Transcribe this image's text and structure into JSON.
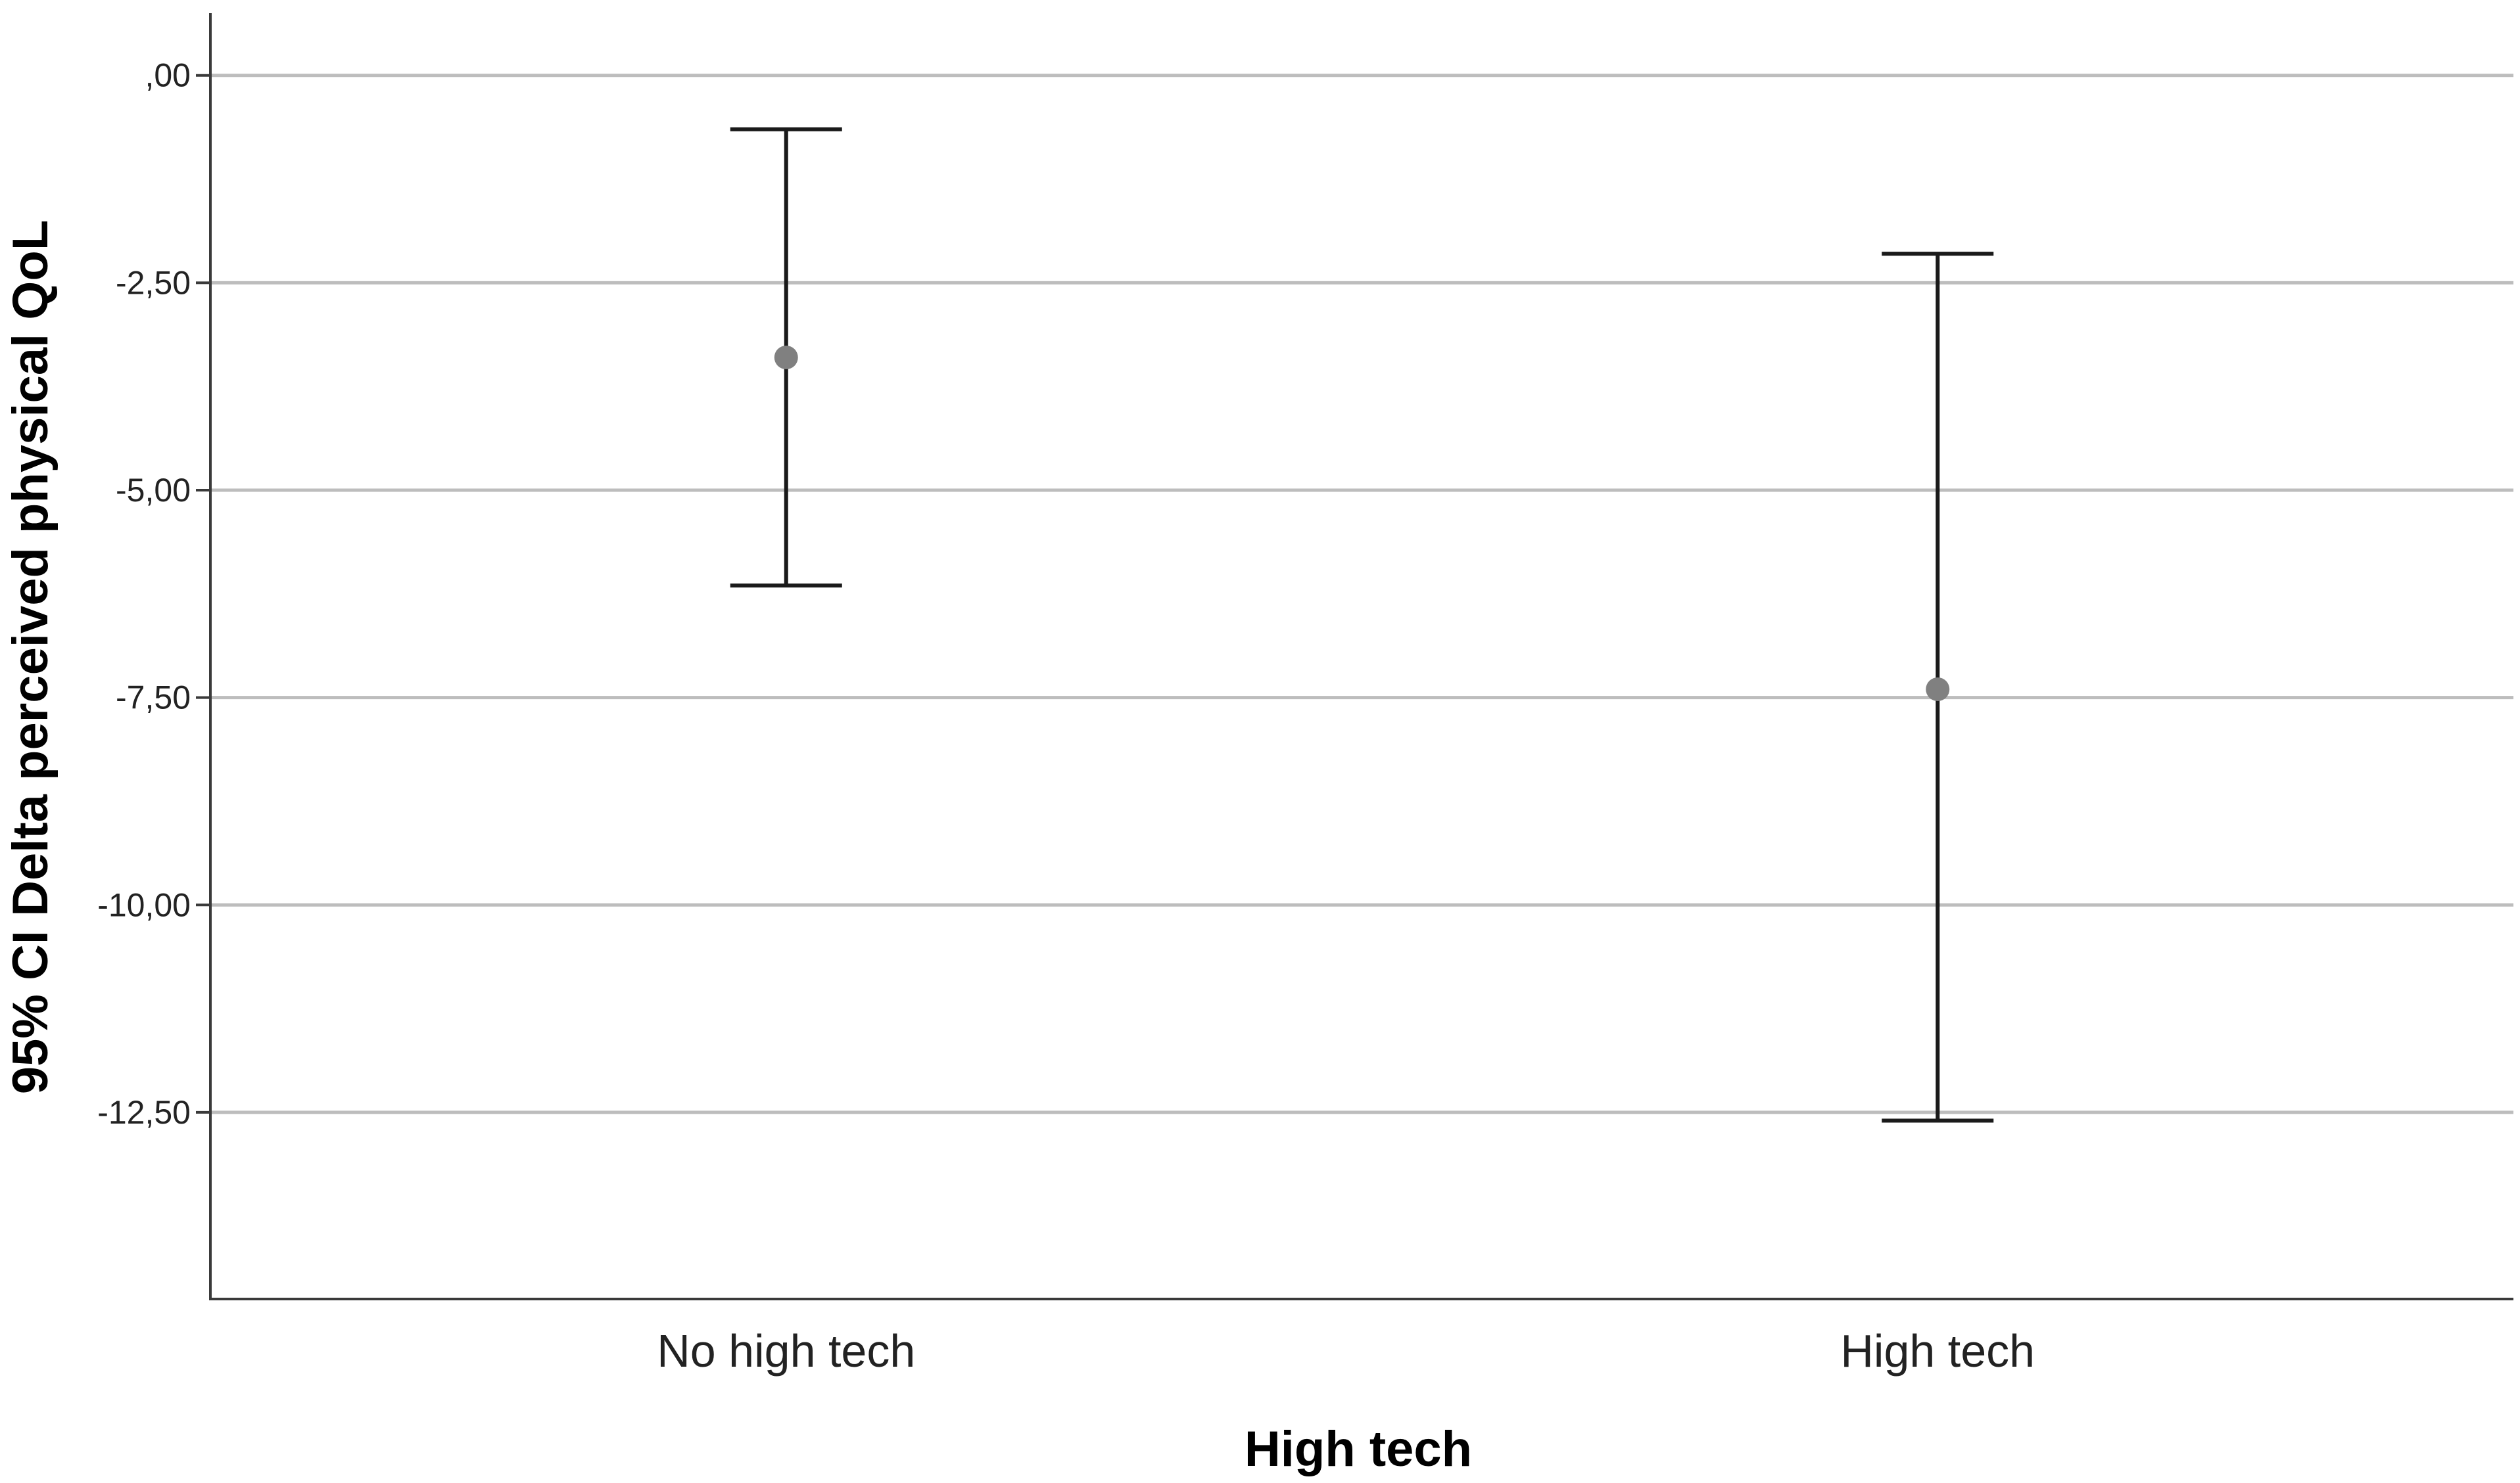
{
  "chart_data": {
    "type": "errorbar",
    "title": "",
    "xlabel": "High tech",
    "ylabel": "95% CI Delta perceived physical QoL",
    "categories": [
      "No high tech",
      "High tech"
    ],
    "series": [
      {
        "means": [
          -3.4,
          -7.4
        ],
        "lower": [
          -6.15,
          -12.6
        ],
        "upper": [
          -0.65,
          -2.15
        ]
      }
    ],
    "ylim": [
      -14.75,
      0.75
    ],
    "yticks": [
      0,
      -2.5,
      -5,
      -7.5,
      -10,
      -12.5
    ],
    "ytick_labels": [
      ",00",
      "-2,50",
      "-5,00",
      "-7,50",
      "-10,00",
      "-12,50"
    ],
    "grid": true,
    "colors": {
      "grid": "#bdbdbd",
      "axis": "#3a3a3a",
      "errorbar": "#1a1a1a",
      "mean": "#808080"
    }
  }
}
